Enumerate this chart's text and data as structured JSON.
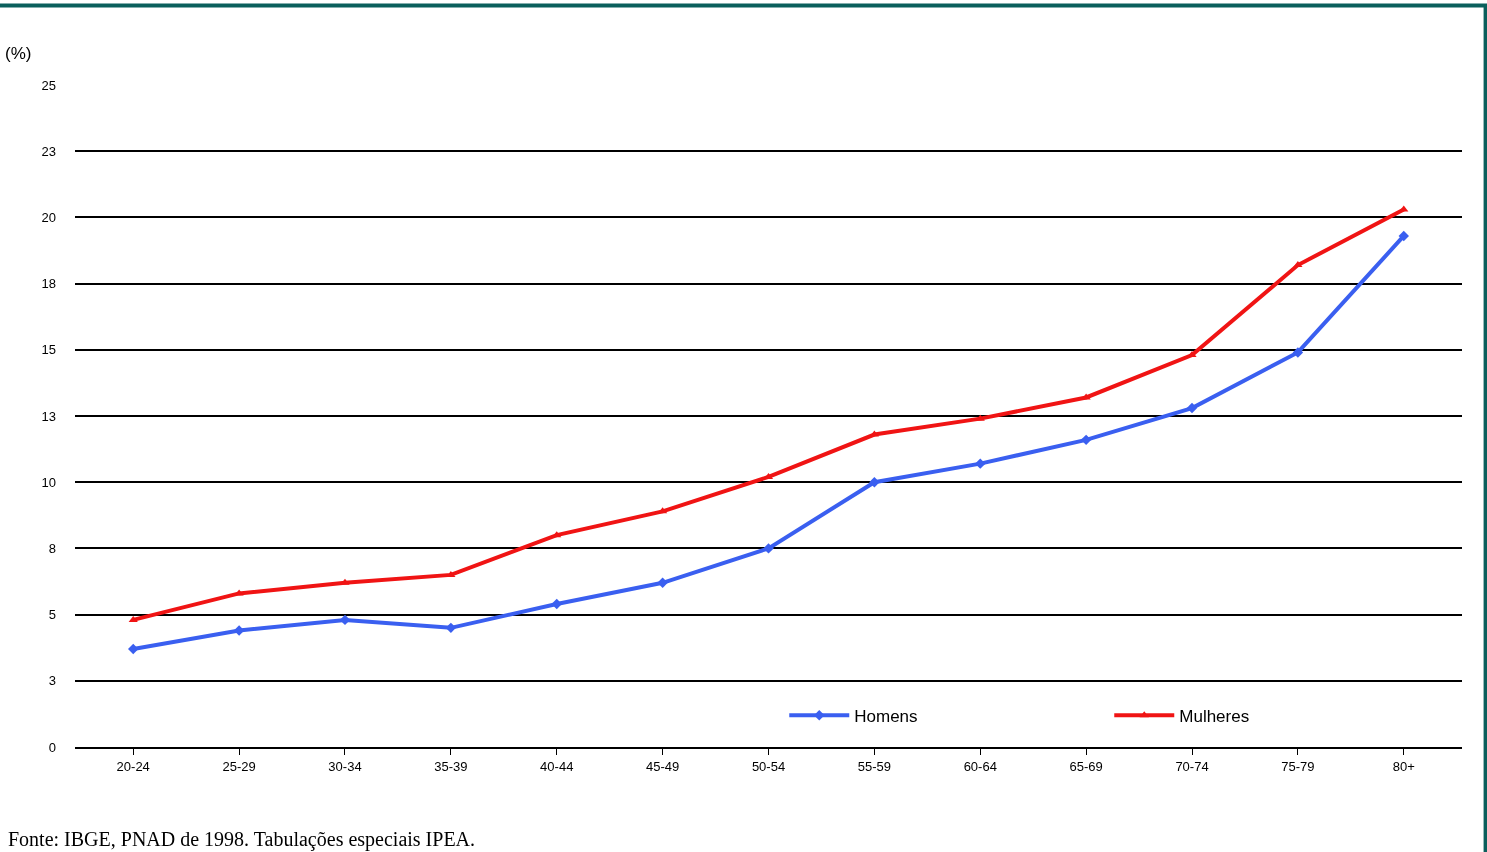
{
  "chart_data": {
    "type": "line",
    "ylabel": "(%)",
    "categories": [
      "20-24",
      "25-29",
      "30-34",
      "35-39",
      "40-44",
      "45-49",
      "50-54",
      "55-59",
      "60-64",
      "65-69",
      "70-74",
      "75-79",
      "80+"
    ],
    "series": [
      {
        "name": "Homens",
        "color": "#3a5ff0",
        "marker": "diamond",
        "values": [
          3.7,
          4.4,
          4.8,
          4.5,
          5.4,
          6.2,
          7.5,
          10.0,
          10.7,
          11.6,
          12.8,
          14.9,
          19.3
        ]
      },
      {
        "name": "Mulheres",
        "color": "#f01414",
        "marker": "triangle",
        "values": [
          4.8,
          5.8,
          6.2,
          6.5,
          8.0,
          8.9,
          10.2,
          11.8,
          12.4,
          13.2,
          14.8,
          18.2,
          20.3
        ]
      }
    ],
    "ylim": [
      0,
      25
    ],
    "yticks": [
      0,
      {
        "value": 2.5,
        "label": "3"
      },
      5,
      {
        "value": 7.5,
        "label": "8"
      },
      10,
      {
        "value": 12.5,
        "label": "13"
      },
      15,
      {
        "value": 17.5,
        "label": "18"
      },
      20,
      {
        "value": 22.5,
        "label": "23"
      },
      25
    ],
    "grid": "y",
    "legend": "bottom right",
    "annotations": [
      "Fonte: IBGE, PNAD de 1998. Tabulações especiais IPEA."
    ]
  }
}
